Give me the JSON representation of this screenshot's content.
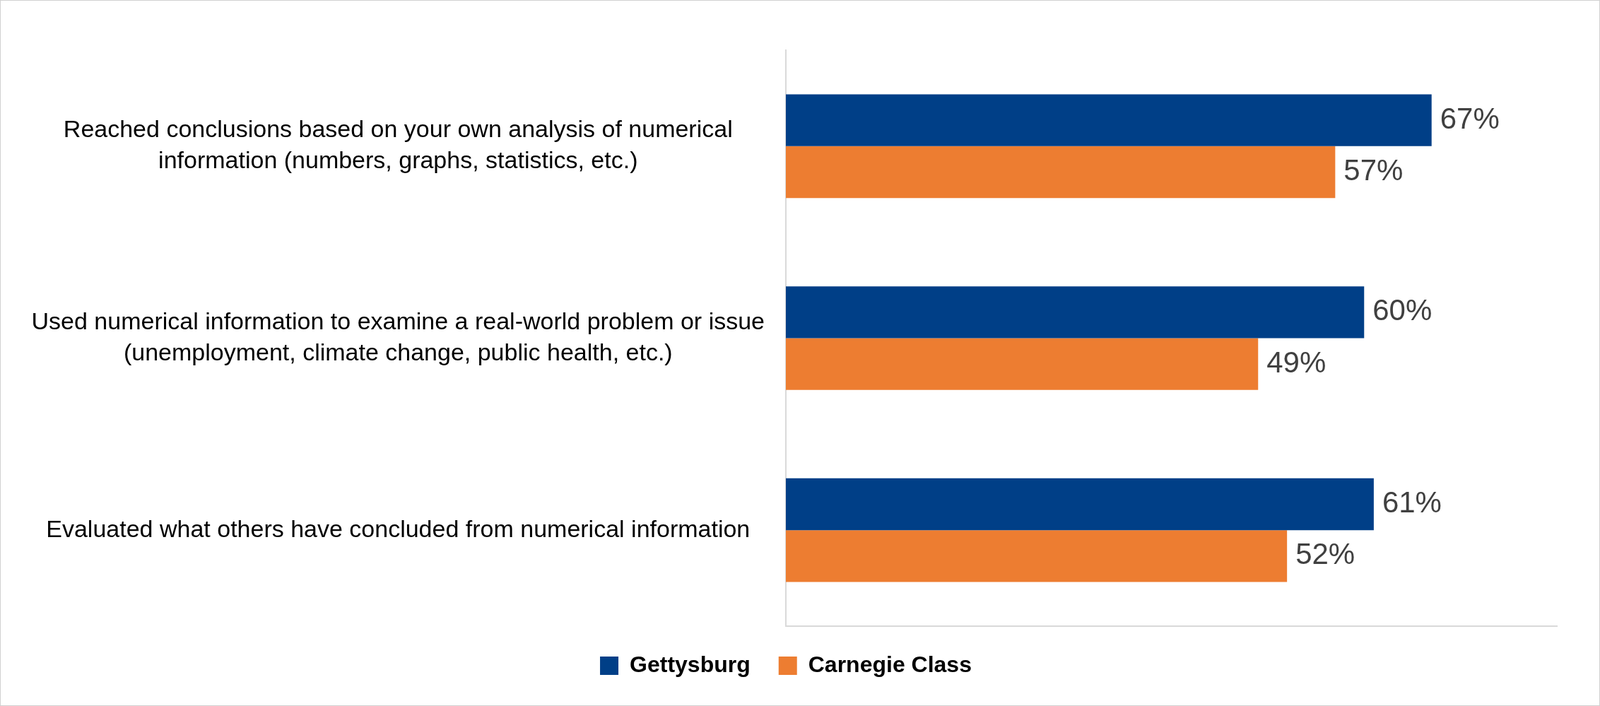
{
  "chart_data": {
    "type": "bar",
    "orientation": "horizontal",
    "categories": [
      "Reached conclusions based on your own analysis of numerical information (numbers, graphs, statistics, etc.)",
      "Used numerical information to examine a real-world problem or issue (unemployment, climate change, public health, etc.)",
      "Evaluated what others have concluded from numerical information"
    ],
    "series": [
      {
        "name": "Gettysburg",
        "color": "#003f87",
        "values": [
          67,
          60,
          61
        ],
        "value_labels": [
          "67%",
          "60%",
          "61%"
        ]
      },
      {
        "name": "Carnegie Class",
        "color": "#ed7d31",
        "values": [
          57,
          49,
          52
        ],
        "value_labels": [
          "57%",
          "49%",
          "52%"
        ]
      }
    ],
    "xlim": [
      0,
      80
    ],
    "grid": false,
    "legend": "bottom",
    "data_labels": true,
    "tick_labels": "y"
  }
}
